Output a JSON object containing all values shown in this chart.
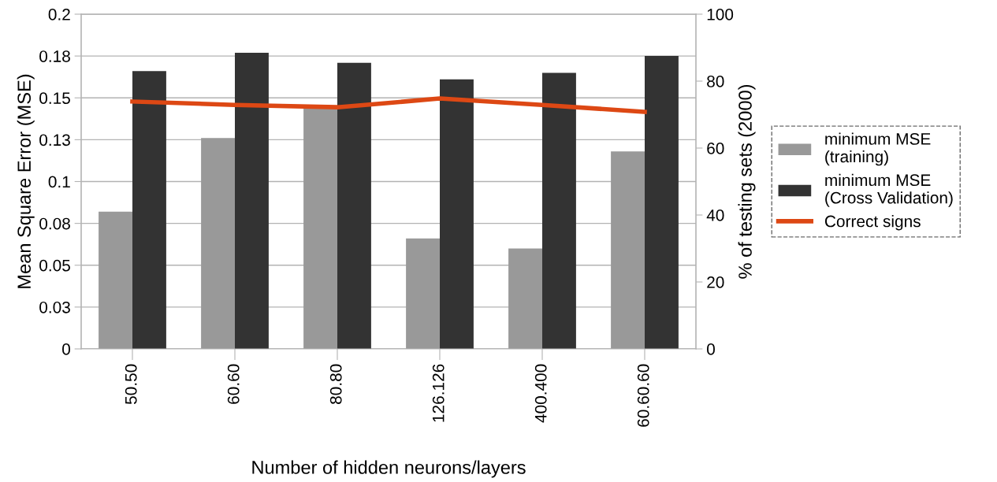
{
  "chart_data": {
    "type": "bar",
    "xlabel": "Number of hidden neurons/layers",
    "ylabel": "Mean Square Error (MSE)",
    "y2label": "% of testing sets (2000)",
    "categories": [
      "50.50",
      "60.60",
      "80.80",
      "126.126",
      "400.400",
      "60.60.60"
    ],
    "series": [
      {
        "name": "minimum MSE\n(training)",
        "color": "#999999",
        "values": [
          0.082,
          0.126,
          0.144,
          0.066,
          0.06,
          0.118
        ]
      },
      {
        "name": "minimum MSE\n(Cross Validation)",
        "color": "#333333",
        "values": [
          0.166,
          0.177,
          0.171,
          0.161,
          0.165,
          0.175
        ]
      },
      {
        "name": "Correct signs",
        "type": "line",
        "axis": "y2",
        "color": "#dd4814",
        "values": [
          73.9,
          72.9,
          72.2,
          74.8,
          72.9,
          70.8
        ]
      }
    ],
    "ylim": [
      0,
      0.2
    ],
    "yticks": [
      0,
      {
        "value": 0.025,
        "label": "0.03"
      },
      0.05,
      {
        "value": 0.075,
        "label": "0.08"
      },
      0.1,
      {
        "value": 0.125,
        "label": "0.13"
      },
      0.15,
      {
        "value": 0.175,
        "label": "0.18"
      },
      0.2
    ],
    "y2lim": [
      0,
      100
    ],
    "y2ticks": [
      0,
      20,
      40,
      60,
      80,
      100
    ],
    "grid": "y",
    "legend": "right",
    "marker": "none",
    "line_style": "solid"
  }
}
